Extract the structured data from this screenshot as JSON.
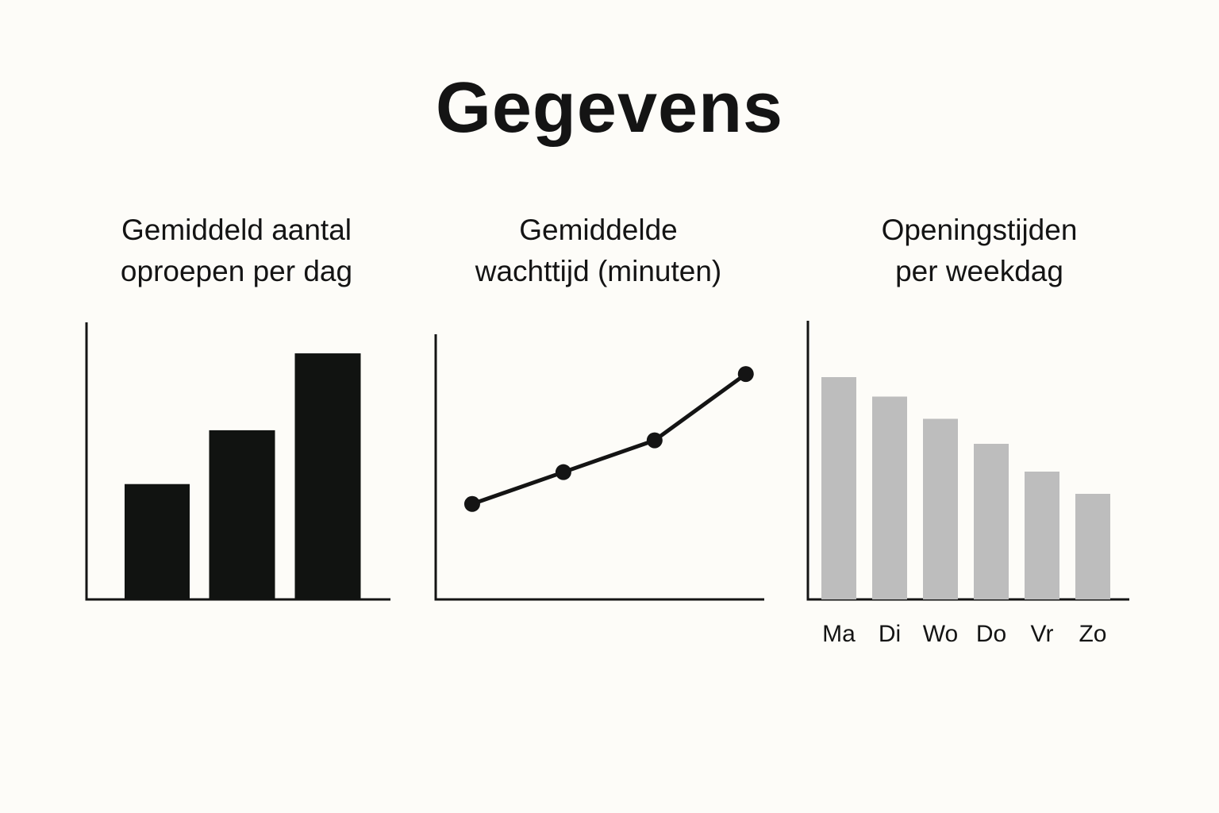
{
  "title": "Gegevens",
  "chart_data": [
    {
      "type": "bar",
      "title": "Gemiddeld aantal\noproepen per dag",
      "xlabel": "",
      "ylabel": "",
      "categories": [
        "",
        "",
        ""
      ],
      "values": [
        45,
        66,
        96
      ],
      "ylim": [
        0,
        105
      ],
      "color": "#111311",
      "grid": false
    },
    {
      "type": "line",
      "title": "Gemiddelde\nwachttijd (minuten)",
      "xlabel": "",
      "ylabel": "",
      "x": [
        1,
        2,
        3,
        4
      ],
      "values": [
        36,
        48,
        60,
        85
      ],
      "ylim": [
        0,
        100
      ],
      "xlim": [
        0.6,
        4.15
      ],
      "color": "#141414",
      "grid": false
    },
    {
      "type": "bar",
      "title": "Openingstijden\nper weekdag",
      "xlabel": "",
      "ylabel": "",
      "categories": [
        "Ma",
        "Di",
        "Wo",
        "Do",
        "Vr",
        "Zo"
      ],
      "values": [
        80,
        73,
        65,
        56,
        46,
        38
      ],
      "ylim": [
        0,
        100
      ],
      "color": "#bdbdbd",
      "grid": false
    }
  ]
}
